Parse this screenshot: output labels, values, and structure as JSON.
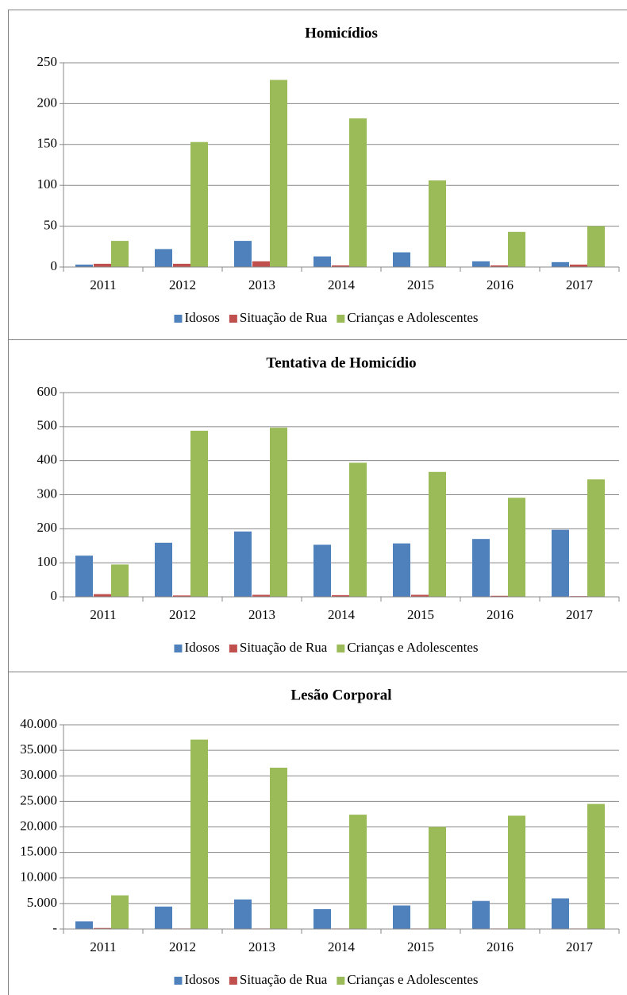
{
  "chart_data": [
    {
      "type": "bar",
      "title": "Homicídios",
      "categories": [
        "2011",
        "2012",
        "2013",
        "2014",
        "2015",
        "2016",
        "2017"
      ],
      "series": [
        {
          "name": "Idosos",
          "color": "#4f81bd",
          "values": [
            3,
            22,
            32,
            13,
            18,
            7,
            6
          ]
        },
        {
          "name": "Situação de Rua",
          "color": "#c0504d",
          "values": [
            4,
            4,
            7,
            2,
            0,
            2,
            3
          ]
        },
        {
          "name": "Crianças e Adolescentes",
          "color": "#9bbb59",
          "values": [
            32,
            153,
            229,
            182,
            106,
            43,
            50
          ]
        }
      ],
      "ylim": [
        0,
        250
      ],
      "yticks": [
        0,
        50,
        100,
        150,
        200,
        250
      ],
      "grid": true,
      "legend": "bottom"
    },
    {
      "type": "bar",
      "title": "Tentativa de Homicídio",
      "categories": [
        "2011",
        "2012",
        "2013",
        "2014",
        "2015",
        "2016",
        "2017"
      ],
      "series": [
        {
          "name": "Idosos",
          "color": "#4f81bd",
          "values": [
            121,
            159,
            192,
            153,
            157,
            170,
            197
          ]
        },
        {
          "name": "Situação de Rua",
          "color": "#c0504d",
          "values": [
            8,
            4,
            6,
            5,
            6,
            3,
            2
          ]
        },
        {
          "name": "Crianças e Adolescentes",
          "color": "#9bbb59",
          "values": [
            95,
            488,
            497,
            394,
            367,
            291,
            345
          ]
        }
      ],
      "ylim": [
        0,
        600
      ],
      "yticks": [
        0,
        100,
        200,
        300,
        400,
        500,
        600
      ],
      "grid": true,
      "legend": "bottom"
    },
    {
      "type": "bar",
      "title": "Lesão Corporal",
      "categories": [
        "2011",
        "2012",
        "2013",
        "2014",
        "2015",
        "2016",
        "2017"
      ],
      "series": [
        {
          "name": "Idosos",
          "color": "#4f81bd",
          "values": [
            1500,
            4400,
            5800,
            3900,
            4600,
            5500,
            6000
          ]
        },
        {
          "name": "Situação de Rua",
          "color": "#c0504d",
          "values": [
            200,
            100,
            100,
            100,
            100,
            100,
            100
          ]
        },
        {
          "name": "Crianças e Adolescentes",
          "color": "#9bbb59",
          "values": [
            6600,
            37100,
            31600,
            22400,
            20000,
            22200,
            24500
          ]
        }
      ],
      "ylim": [
        0,
        40000
      ],
      "yticks": [
        {
          "value": 0,
          "label": "-"
        },
        {
          "value": 5000,
          "label": "5.000"
        },
        {
          "value": 10000,
          "label": "10.000"
        },
        {
          "value": 15000,
          "label": "15.000"
        },
        {
          "value": 20000,
          "label": "20.000"
        },
        {
          "value": 25000,
          "label": "25.000"
        },
        {
          "value": 30000,
          "label": "30.000"
        },
        {
          "value": 35000,
          "label": "35.000"
        },
        {
          "value": 40000,
          "label": "40.000"
        }
      ],
      "grid": true,
      "legend": "bottom"
    }
  ]
}
